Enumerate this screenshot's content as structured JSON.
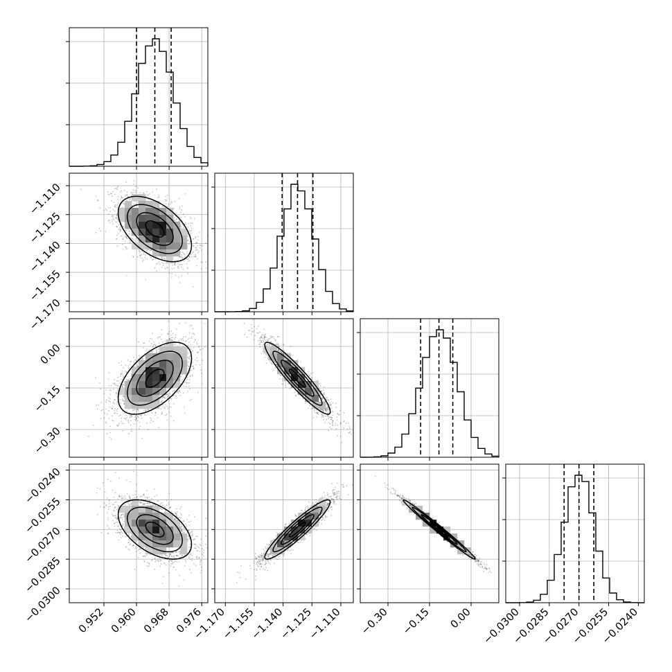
{
  "chart_data": {
    "type": "corner",
    "grid": true,
    "legend": "none",
    "colors": {
      "ink": "#000000",
      "grid": "#b0b0b0",
      "cloud": "#555555"
    },
    "parameters": [
      {
        "range": [
          0.9435,
          0.9775
        ],
        "ticks": [
          0.952,
          0.96,
          0.968,
          0.976
        ],
        "tick_labels": [
          "0.952",
          "0.960",
          "0.968",
          "0.976"
        ],
        "mean": 0.9645,
        "sd": 0.0045,
        "quantiles": [
          0.96,
          0.9645,
          0.9685
        ]
      },
      {
        "range": [
          -1.1755,
          -1.1035
        ],
        "ticks": [
          -1.17,
          -1.155,
          -1.14,
          -1.125,
          -1.11
        ],
        "tick_labels": [
          "−1.170",
          "−1.155",
          "−1.140",
          "−1.125",
          "−1.110"
        ],
        "mean": -1.1325,
        "sd": 0.0085,
        "quantiles": [
          -1.1405,
          -1.1325,
          -1.1245
        ]
      },
      {
        "range": [
          -0.4,
          0.1
        ],
        "ticks": [
          -0.3,
          -0.15,
          0.0
        ],
        "tick_labels": [
          "−0.30",
          "−0.15",
          "0.00"
        ],
        "mean": -0.115,
        "sd": 0.065,
        "quantiles": [
          -0.182,
          -0.116,
          -0.066
        ]
      },
      {
        "range": [
          -0.0307,
          -0.0237
        ],
        "ticks": [
          -0.03,
          -0.0285,
          -0.027,
          -0.0255,
          -0.024
        ],
        "tick_labels": [
          "−0.0300",
          "−0.0285",
          "−0.0270",
          "−0.0255",
          "−0.0240"
        ],
        "mean": -0.027,
        "sd": 0.00075,
        "quantiles": [
          -0.02775,
          -0.027,
          -0.02625
        ]
      }
    ],
    "correlations": [
      {
        "pair": [
          1,
          0
        ],
        "rho": -0.5
      },
      {
        "pair": [
          2,
          0
        ],
        "rho": 0.55
      },
      {
        "pair": [
          2,
          1
        ],
        "rho": -0.93
      },
      {
        "pair": [
          3,
          0
        ],
        "rho": -0.5
      },
      {
        "pair": [
          3,
          1
        ],
        "rho": 0.93
      },
      {
        "pair": [
          3,
          2
        ],
        "rho": -0.99
      }
    ]
  }
}
